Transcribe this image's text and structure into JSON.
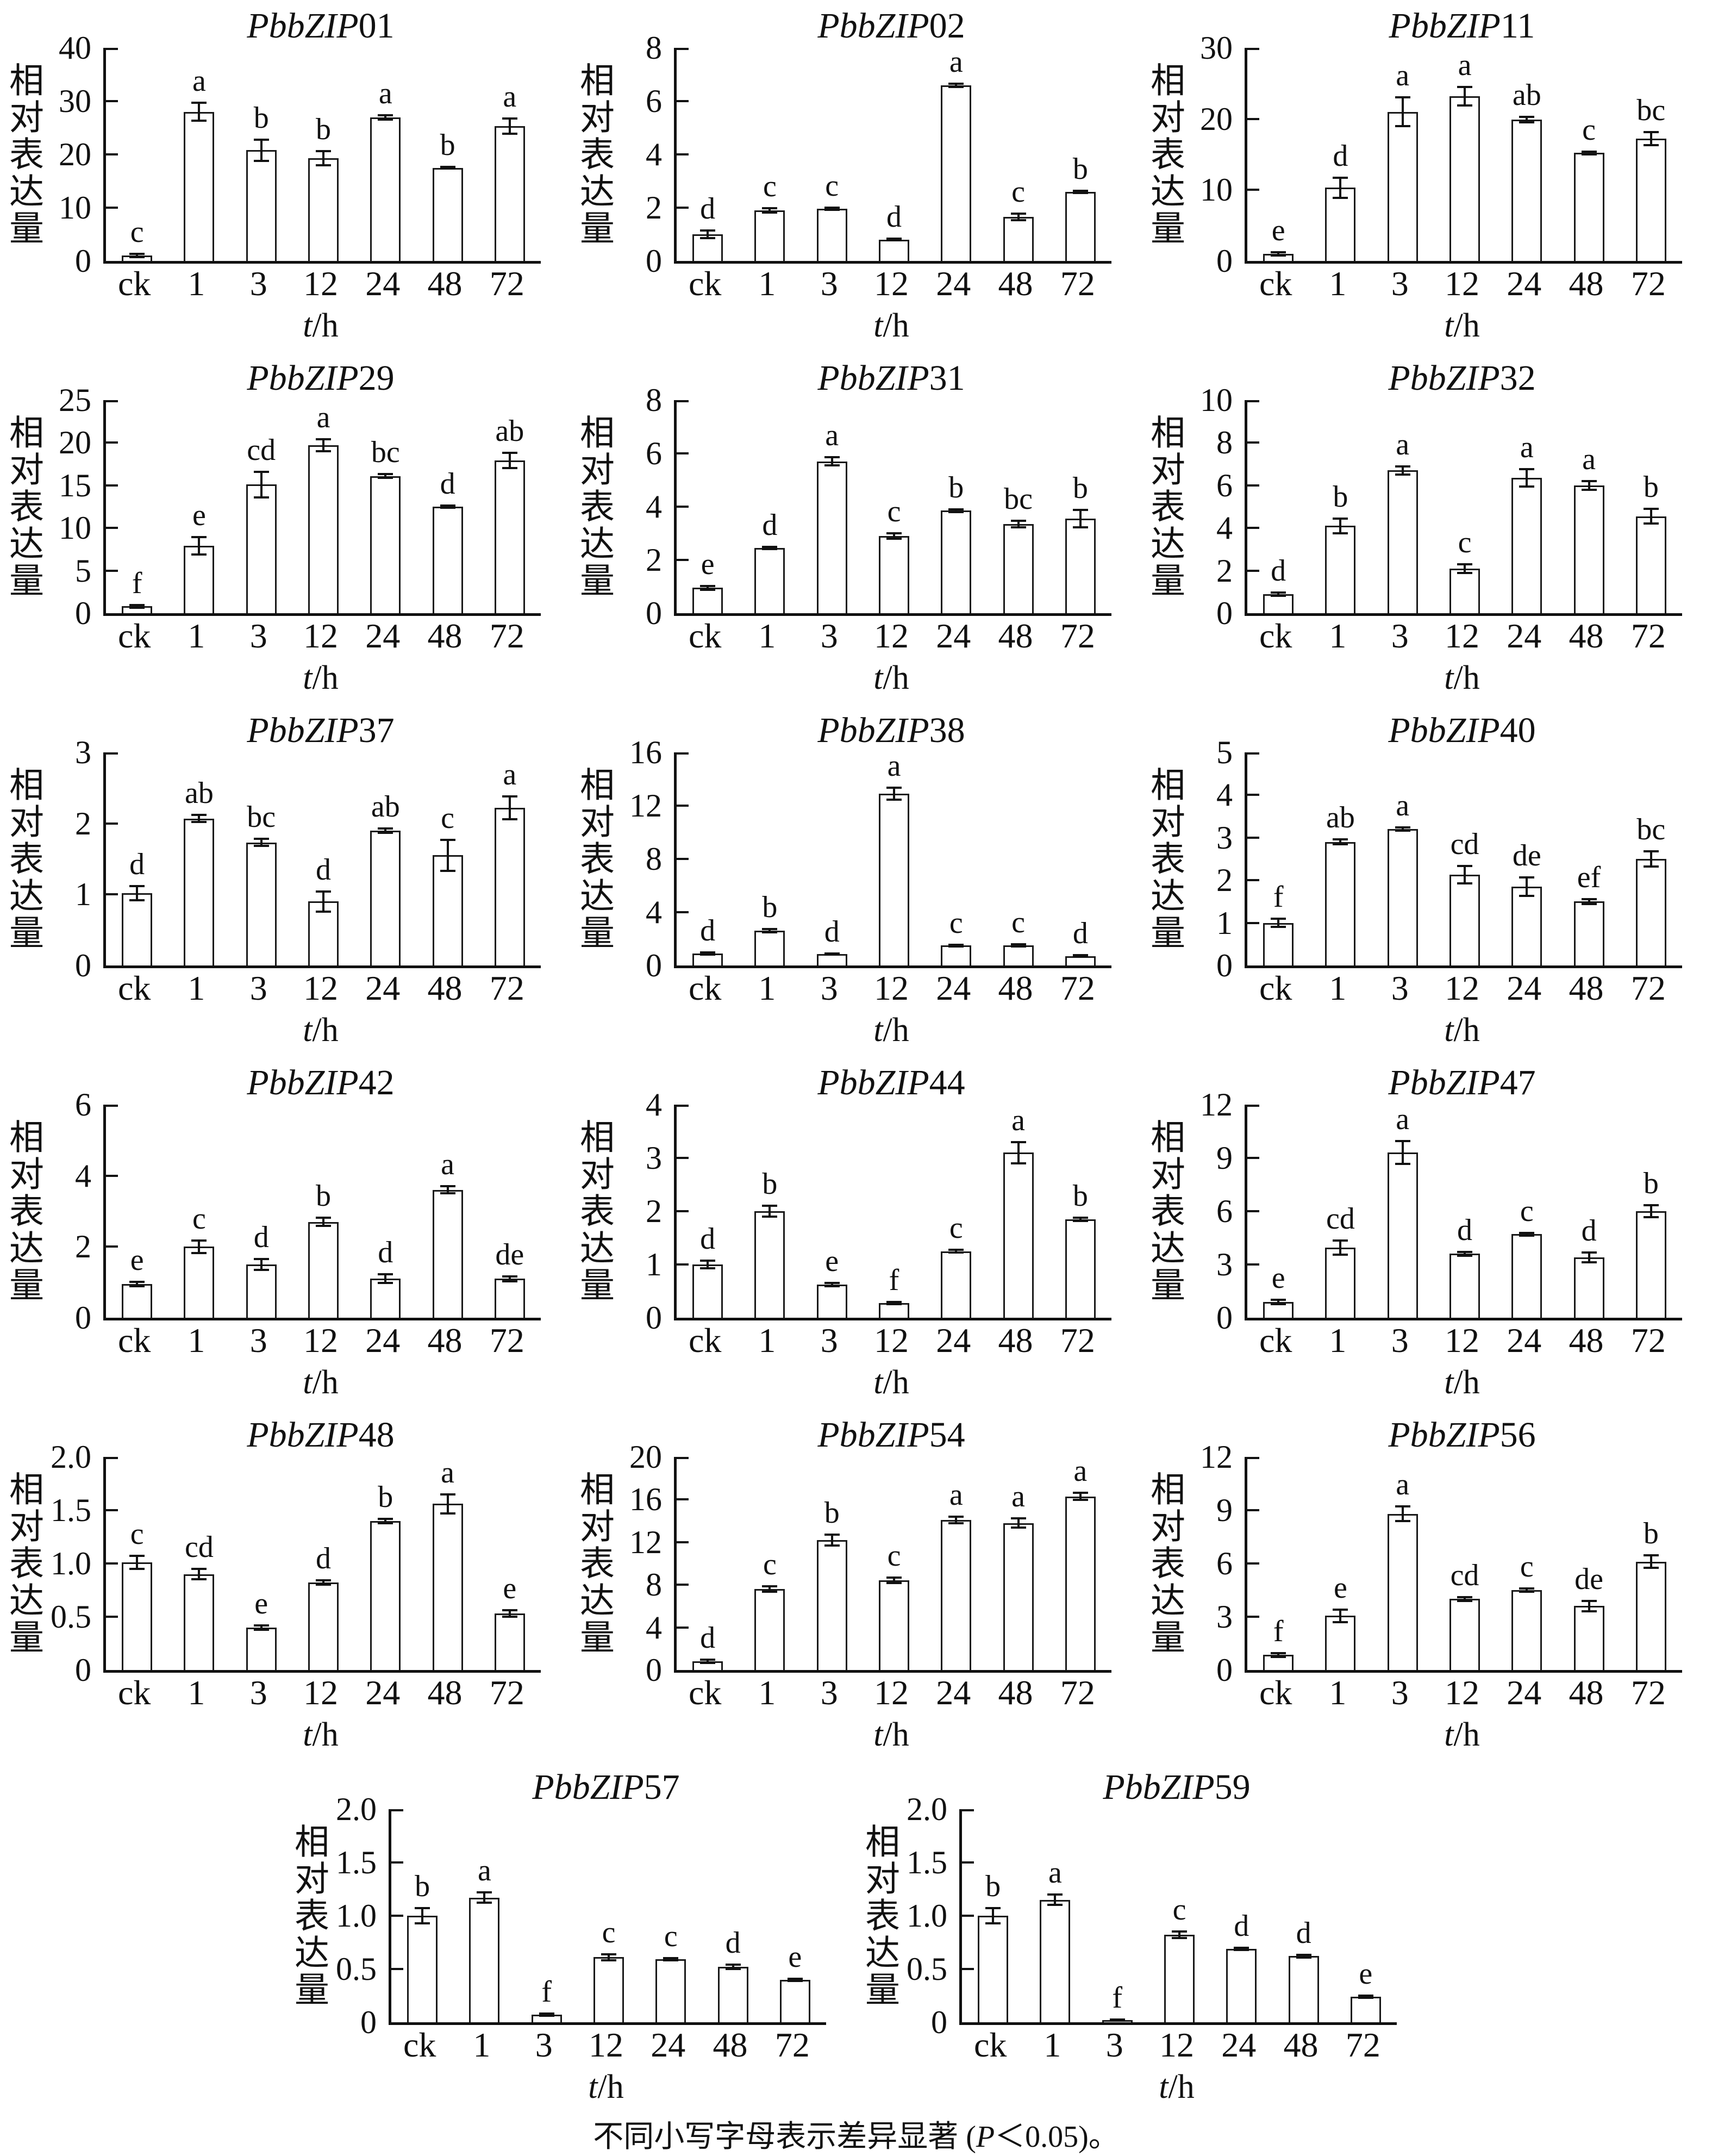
{
  "figure": {
    "y_axis_label": "相对表达量",
    "x_axis_label": {
      "italic": "t",
      "rest": "/h"
    },
    "caption": {
      "prefix": "不同小写字母表示差异显著 (",
      "italic": "P",
      "suffix": "＜0.05)。"
    }
  },
  "chart_data": [
    {
      "type": "bar",
      "title_italic": "PbbZIP",
      "title_number": "01",
      "categories": [
        "ck",
        "1",
        "3",
        "12",
        "24",
        "48",
        "72"
      ],
      "values": [
        1.0,
        28.0,
        20.8,
        19.3,
        26.9,
        17.5,
        25.3
      ],
      "errors": [
        0.3,
        1.7,
        2.0,
        1.3,
        0.4,
        0.15,
        1.4
      ],
      "letters": [
        "c",
        "a",
        "b",
        "b",
        "a",
        "b",
        "a"
      ],
      "ylim": [
        0,
        40
      ],
      "yticks": [
        "0",
        "10",
        "20",
        "30",
        "40"
      ],
      "ylabel": "相对表达量",
      "xlabel": "t/h"
    },
    {
      "type": "bar",
      "title_italic": "PbbZIP",
      "title_number": "02",
      "categories": [
        "ck",
        "1",
        "3",
        "12",
        "24",
        "48",
        "72"
      ],
      "values": [
        1.0,
        1.9,
        1.95,
        0.8,
        6.6,
        1.65,
        2.6
      ],
      "errors": [
        0.15,
        0.08,
        0.04,
        0.03,
        0.06,
        0.12,
        0.04
      ],
      "letters": [
        "d",
        "c",
        "c",
        "d",
        "a",
        "c",
        "b"
      ],
      "ylim": [
        0,
        8
      ],
      "yticks": [
        "0",
        "2",
        "4",
        "6",
        "8"
      ],
      "ylabel": "相对表达量",
      "xlabel": "t/h"
    },
    {
      "type": "bar",
      "title_italic": "PbbZIP",
      "title_number": "11",
      "categories": [
        "ck",
        "1",
        "3",
        "12",
        "24",
        "48",
        "72"
      ],
      "values": [
        1.0,
        10.3,
        21.0,
        23.2,
        19.9,
        15.2,
        17.2
      ],
      "errors": [
        0.2,
        1.4,
        2.0,
        1.3,
        0.4,
        0.2,
        0.9
      ],
      "letters": [
        "e",
        "d",
        "a",
        "a",
        "ab",
        "c",
        "bc"
      ],
      "ylim": [
        0,
        30
      ],
      "yticks": [
        "0",
        "10",
        "20",
        "30"
      ],
      "ylabel": "相对表达量",
      "xlabel": "t/h"
    },
    {
      "type": "bar",
      "title_italic": "PbbZIP",
      "title_number": "29",
      "categories": [
        "ck",
        "1",
        "3",
        "12",
        "24",
        "48",
        "72"
      ],
      "values": [
        0.8,
        7.9,
        15.1,
        19.7,
        16.1,
        12.5,
        17.9
      ],
      "errors": [
        0.15,
        1.0,
        1.5,
        0.7,
        0.25,
        0.15,
        0.9
      ],
      "letters": [
        "f",
        "e",
        "cd",
        "a",
        "bc",
        "d",
        "ab"
      ],
      "ylim": [
        0,
        25
      ],
      "yticks": [
        "0",
        "5",
        "10",
        "15",
        "20",
        "25"
      ],
      "ylabel": "相对表达量",
      "xlabel": "t/h"
    },
    {
      "type": "bar",
      "title_italic": "PbbZIP",
      "title_number": "31",
      "categories": [
        "ck",
        "1",
        "3",
        "12",
        "24",
        "48",
        "72"
      ],
      "values": [
        0.95,
        2.45,
        5.7,
        2.9,
        3.85,
        3.35,
        3.55
      ],
      "errors": [
        0.08,
        0.05,
        0.15,
        0.1,
        0.05,
        0.12,
        0.32
      ],
      "letters": [
        "e",
        "d",
        "a",
        "c",
        "b",
        "bc",
        "b"
      ],
      "ylim": [
        0,
        8
      ],
      "yticks": [
        "0",
        "2",
        "4",
        "6",
        "8"
      ],
      "ylabel": "相对表达量",
      "xlabel": "t/h"
    },
    {
      "type": "bar",
      "title_italic": "PbbZIP",
      "title_number": "32",
      "categories": [
        "ck",
        "1",
        "3",
        "12",
        "24",
        "48",
        "72"
      ],
      "values": [
        0.9,
        4.1,
        6.7,
        2.1,
        6.35,
        6.0,
        4.55
      ],
      "errors": [
        0.08,
        0.35,
        0.2,
        0.2,
        0.4,
        0.2,
        0.35
      ],
      "letters": [
        "d",
        "b",
        "a",
        "c",
        "a",
        "a",
        "b"
      ],
      "ylim": [
        0,
        10
      ],
      "yticks": [
        "0",
        "2",
        "4",
        "6",
        "8",
        "10"
      ],
      "ylabel": "相对表达量",
      "xlabel": "t/h"
    },
    {
      "type": "bar",
      "title_italic": "PbbZIP",
      "title_number": "37",
      "categories": [
        "ck",
        "1",
        "3",
        "12",
        "24",
        "48",
        "72"
      ],
      "values": [
        1.02,
        2.07,
        1.73,
        0.9,
        1.9,
        1.55,
        2.22
      ],
      "errors": [
        0.1,
        0.05,
        0.05,
        0.14,
        0.03,
        0.22,
        0.16
      ],
      "letters": [
        "d",
        "ab",
        "bc",
        "d",
        "ab",
        "c",
        "a"
      ],
      "ylim": [
        0,
        3
      ],
      "yticks": [
        "0",
        "1",
        "2",
        "3"
      ],
      "ylabel": "相对表达量",
      "xlabel": "t/h"
    },
    {
      "type": "bar",
      "title_italic": "PbbZIP",
      "title_number": "38",
      "categories": [
        "ck",
        "1",
        "3",
        "12",
        "24",
        "48",
        "72"
      ],
      "values": [
        0.9,
        2.6,
        0.85,
        12.9,
        1.5,
        1.5,
        0.7
      ],
      "errors": [
        0.08,
        0.12,
        0.05,
        0.45,
        0.07,
        0.08,
        0.06
      ],
      "letters": [
        "d",
        "b",
        "d",
        "a",
        "c",
        "c",
        "d"
      ],
      "ylim": [
        0,
        16
      ],
      "yticks": [
        "0",
        "4",
        "8",
        "12",
        "16"
      ],
      "ylabel": "相对表达量",
      "xlabel": "t/h"
    },
    {
      "type": "bar",
      "title_italic": "PbbZIP",
      "title_number": "40",
      "categories": [
        "ck",
        "1",
        "3",
        "12",
        "24",
        "48",
        "72"
      ],
      "values": [
        1.0,
        2.9,
        3.2,
        2.13,
        1.85,
        1.5,
        2.5
      ],
      "errors": [
        0.1,
        0.06,
        0.04,
        0.2,
        0.22,
        0.06,
        0.18
      ],
      "letters": [
        "f",
        "ab",
        "a",
        "cd",
        "de",
        "ef",
        "bc"
      ],
      "ylim": [
        0,
        5
      ],
      "yticks": [
        "0",
        "1",
        "2",
        "3",
        "4",
        "5"
      ],
      "ylabel": "相对表达量",
      "xlabel": "t/h"
    },
    {
      "type": "bar",
      "title_italic": "PbbZIP",
      "title_number": "42",
      "categories": [
        "ck",
        "1",
        "3",
        "12",
        "24",
        "48",
        "72"
      ],
      "values": [
        0.95,
        2.0,
        1.5,
        2.7,
        1.1,
        3.6,
        1.1
      ],
      "errors": [
        0.06,
        0.18,
        0.16,
        0.12,
        0.12,
        0.1,
        0.07
      ],
      "letters": [
        "e",
        "c",
        "d",
        "b",
        "d",
        "a",
        "de"
      ],
      "ylim": [
        0,
        6
      ],
      "yticks": [
        "0",
        "2",
        "4",
        "6"
      ],
      "ylabel": "相对表达量",
      "xlabel": "t/h"
    },
    {
      "type": "bar",
      "title_italic": "PbbZIP",
      "title_number": "44",
      "categories": [
        "ck",
        "1",
        "3",
        "12",
        "24",
        "48",
        "72"
      ],
      "values": [
        1.0,
        2.0,
        0.62,
        0.28,
        1.25,
        3.1,
        1.85
      ],
      "errors": [
        0.07,
        0.1,
        0.03,
        0.02,
        0.03,
        0.2,
        0.03
      ],
      "letters": [
        "d",
        "b",
        "e",
        "f",
        "c",
        "a",
        "b"
      ],
      "ylim": [
        0,
        4
      ],
      "yticks": [
        "0",
        "1",
        "2",
        "3",
        "4"
      ],
      "ylabel": "相对表达量",
      "xlabel": "t/h"
    },
    {
      "type": "bar",
      "title_italic": "PbbZIP",
      "title_number": "47",
      "categories": [
        "ck",
        "1",
        "3",
        "12",
        "24",
        "48",
        "72"
      ],
      "values": [
        0.9,
        3.95,
        9.3,
        3.6,
        4.7,
        3.4,
        6.0
      ],
      "errors": [
        0.12,
        0.4,
        0.65,
        0.1,
        0.08,
        0.28,
        0.35
      ],
      "letters": [
        "e",
        "cd",
        "a",
        "d",
        "c",
        "d",
        "b"
      ],
      "ylim": [
        0,
        12
      ],
      "yticks": [
        "0",
        "3",
        "6",
        "9",
        "12"
      ],
      "ylabel": "相对表达量",
      "xlabel": "t/h"
    },
    {
      "type": "bar",
      "title_italic": "PbbZIP",
      "title_number": "48",
      "categories": [
        "ck",
        "1",
        "3",
        "12",
        "24",
        "48",
        "72"
      ],
      "values": [
        1.01,
        0.9,
        0.4,
        0.82,
        1.4,
        1.56,
        0.53
      ],
      "errors": [
        0.06,
        0.05,
        0.02,
        0.02,
        0.02,
        0.09,
        0.03
      ],
      "letters": [
        "c",
        "cd",
        "e",
        "d",
        "b",
        "a",
        "e"
      ],
      "ylim": [
        0,
        2.0
      ],
      "yticks": [
        "0",
        "0.5",
        "1.0",
        "1.5",
        "2.0"
      ],
      "ylabel": "相对表达量",
      "xlabel": "t/h"
    },
    {
      "type": "bar",
      "title_italic": "PbbZIP",
      "title_number": "54",
      "categories": [
        "ck",
        "1",
        "3",
        "12",
        "24",
        "48",
        "72"
      ],
      "values": [
        0.8,
        7.6,
        12.2,
        8.4,
        14.1,
        13.8,
        16.3
      ],
      "errors": [
        0.15,
        0.25,
        0.5,
        0.25,
        0.3,
        0.45,
        0.35
      ],
      "letters": [
        "d",
        "c",
        "b",
        "c",
        "a",
        "a",
        "a"
      ],
      "ylim": [
        0,
        20
      ],
      "yticks": [
        "0",
        "4",
        "8",
        "12",
        "16",
        "20"
      ],
      "ylabel": "相对表达量",
      "xlabel": "t/h"
    },
    {
      "type": "bar",
      "title_italic": "PbbZIP",
      "title_number": "56",
      "categories": [
        "ck",
        "1",
        "3",
        "12",
        "24",
        "48",
        "72"
      ],
      "values": [
        0.85,
        3.05,
        8.8,
        4.0,
        4.5,
        3.6,
        6.1
      ],
      "errors": [
        0.1,
        0.35,
        0.4,
        0.1,
        0.08,
        0.3,
        0.35
      ],
      "letters": [
        "f",
        "e",
        "a",
        "cd",
        "c",
        "de",
        "b"
      ],
      "ylim": [
        0,
        12
      ],
      "yticks": [
        "0",
        "3",
        "6",
        "9",
        "12"
      ],
      "ylabel": "相对表达量",
      "xlabel": "t/h"
    },
    {
      "type": "bar",
      "title_italic": "PbbZIP",
      "title_number": "57",
      "categories": [
        "ck",
        "1",
        "3",
        "12",
        "24",
        "48",
        "72"
      ],
      "values": [
        1.0,
        1.17,
        0.07,
        0.61,
        0.59,
        0.52,
        0.4
      ],
      "errors": [
        0.07,
        0.05,
        0.01,
        0.03,
        0.01,
        0.02,
        0.01
      ],
      "letters": [
        "b",
        "a",
        "f",
        "c",
        "c",
        "d",
        "e"
      ],
      "ylim": [
        0,
        2.0
      ],
      "yticks": [
        "0",
        "0.5",
        "1.0",
        "1.5",
        "2.0"
      ],
      "ylabel": "相对表达量",
      "xlabel": "t/h"
    },
    {
      "type": "bar",
      "title_italic": "PbbZIP",
      "title_number": "59",
      "categories": [
        "ck",
        "1",
        "3",
        "12",
        "24",
        "48",
        "72"
      ],
      "values": [
        1.0,
        1.15,
        0.02,
        0.82,
        0.69,
        0.62,
        0.24
      ],
      "errors": [
        0.07,
        0.05,
        0.005,
        0.03,
        0.01,
        0.015,
        0.01
      ],
      "letters": [
        "b",
        "a",
        "f",
        "c",
        "d",
        "d",
        "e"
      ],
      "ylim": [
        0,
        2.0
      ],
      "yticks": [
        "0",
        "0.5",
        "1.0",
        "1.5",
        "2.0"
      ],
      "ylabel": "相对表达量",
      "xlabel": "t/h"
    }
  ]
}
